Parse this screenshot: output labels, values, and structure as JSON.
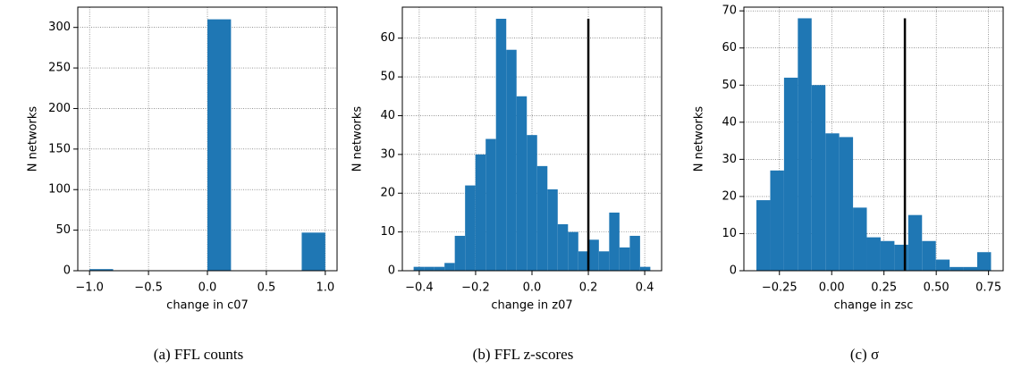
{
  "chart_data": [
    {
      "type": "histogram",
      "caption": "(a) FFL counts",
      "xlabel": "change in c07",
      "ylabel": "N networks",
      "color": "#1f77b4",
      "grid": true,
      "bins": [
        -1.0,
        -0.8,
        -0.6,
        -0.4,
        -0.2,
        0.0,
        0.2,
        0.4,
        0.6,
        0.8,
        1.0
      ],
      "counts": [
        2,
        0,
        0,
        0,
        0,
        310,
        0,
        0,
        0,
        47
      ],
      "xlim": [
        -1.1,
        1.1
      ],
      "ylim": [
        0,
        325
      ],
      "xticks": [
        {
          "value": -1,
          "label": "−1.0"
        },
        {
          "value": -0.5,
          "label": "−0.5"
        },
        {
          "value": 0,
          "label": "0.0"
        },
        0.5,
        {
          "value": 1,
          "label": "1.0"
        }
      ],
      "yticks": [
        0,
        50,
        100,
        150,
        200,
        250,
        300
      ]
    },
    {
      "type": "histogram",
      "caption": "(b) FFL z-scores",
      "xlabel": "change in z07",
      "ylabel": "N networks",
      "color": "#1f77b4",
      "grid": true,
      "bins": [
        -0.42,
        -0.3835,
        -0.347,
        -0.3104,
        -0.2739,
        -0.2374,
        -0.2009,
        -0.1643,
        -0.1278,
        -0.0913,
        -0.0548,
        -0.0183,
        0.0183,
        0.0548,
        0.0913,
        0.1278,
        0.1643,
        0.2009,
        0.2374,
        0.2739,
        0.3104,
        0.347,
        0.3835,
        0.42
      ],
      "counts": [
        1,
        1,
        1,
        2,
        9,
        22,
        30,
        34,
        65,
        57,
        45,
        35,
        27,
        21,
        12,
        10,
        5,
        8,
        5,
        15,
        6,
        9,
        1
      ],
      "xlim": [
        -0.46,
        0.46
      ],
      "ylim": [
        0,
        68
      ],
      "xticks": [
        {
          "value": -0.4,
          "label": "−0.4"
        },
        {
          "value": -0.2,
          "label": "−0.2"
        },
        {
          "value": 0,
          "label": "0.0"
        },
        0.2,
        0.4
      ],
      "yticks": [
        0,
        10,
        20,
        30,
        40,
        50,
        60
      ],
      "vline": {
        "x": 0.2,
        "ymax": 65,
        "color": "#000000"
      }
    },
    {
      "type": "histogram",
      "caption": "(c) σ",
      "xlabel": "change in zsc",
      "ylabel": "N networks",
      "color": "#1f77b4",
      "grid": true,
      "bins": [
        -0.36,
        -0.294,
        -0.228,
        -0.162,
        -0.096,
        -0.03,
        0.036,
        0.102,
        0.168,
        0.234,
        0.3,
        0.366,
        0.432,
        0.498,
        0.564,
        0.63,
        0.696,
        0.762
      ],
      "counts": [
        19,
        27,
        52,
        68,
        50,
        37,
        36,
        17,
        9,
        8,
        7,
        15,
        8,
        3,
        1,
        1,
        5
      ],
      "xlim": [
        -0.42,
        0.82
      ],
      "ylim": [
        0,
        71
      ],
      "xticks": [
        {
          "value": -0.25,
          "label": "−0.25"
        },
        {
          "value": 0,
          "label": "0.00"
        },
        0.25,
        {
          "value": 0.5,
          "label": "0.50"
        },
        0.75
      ],
      "yticks": [
        0,
        10,
        20,
        30,
        40,
        50,
        60,
        70
      ],
      "vline": {
        "x": 0.35,
        "ymax": 68,
        "color": "#000000"
      }
    }
  ]
}
